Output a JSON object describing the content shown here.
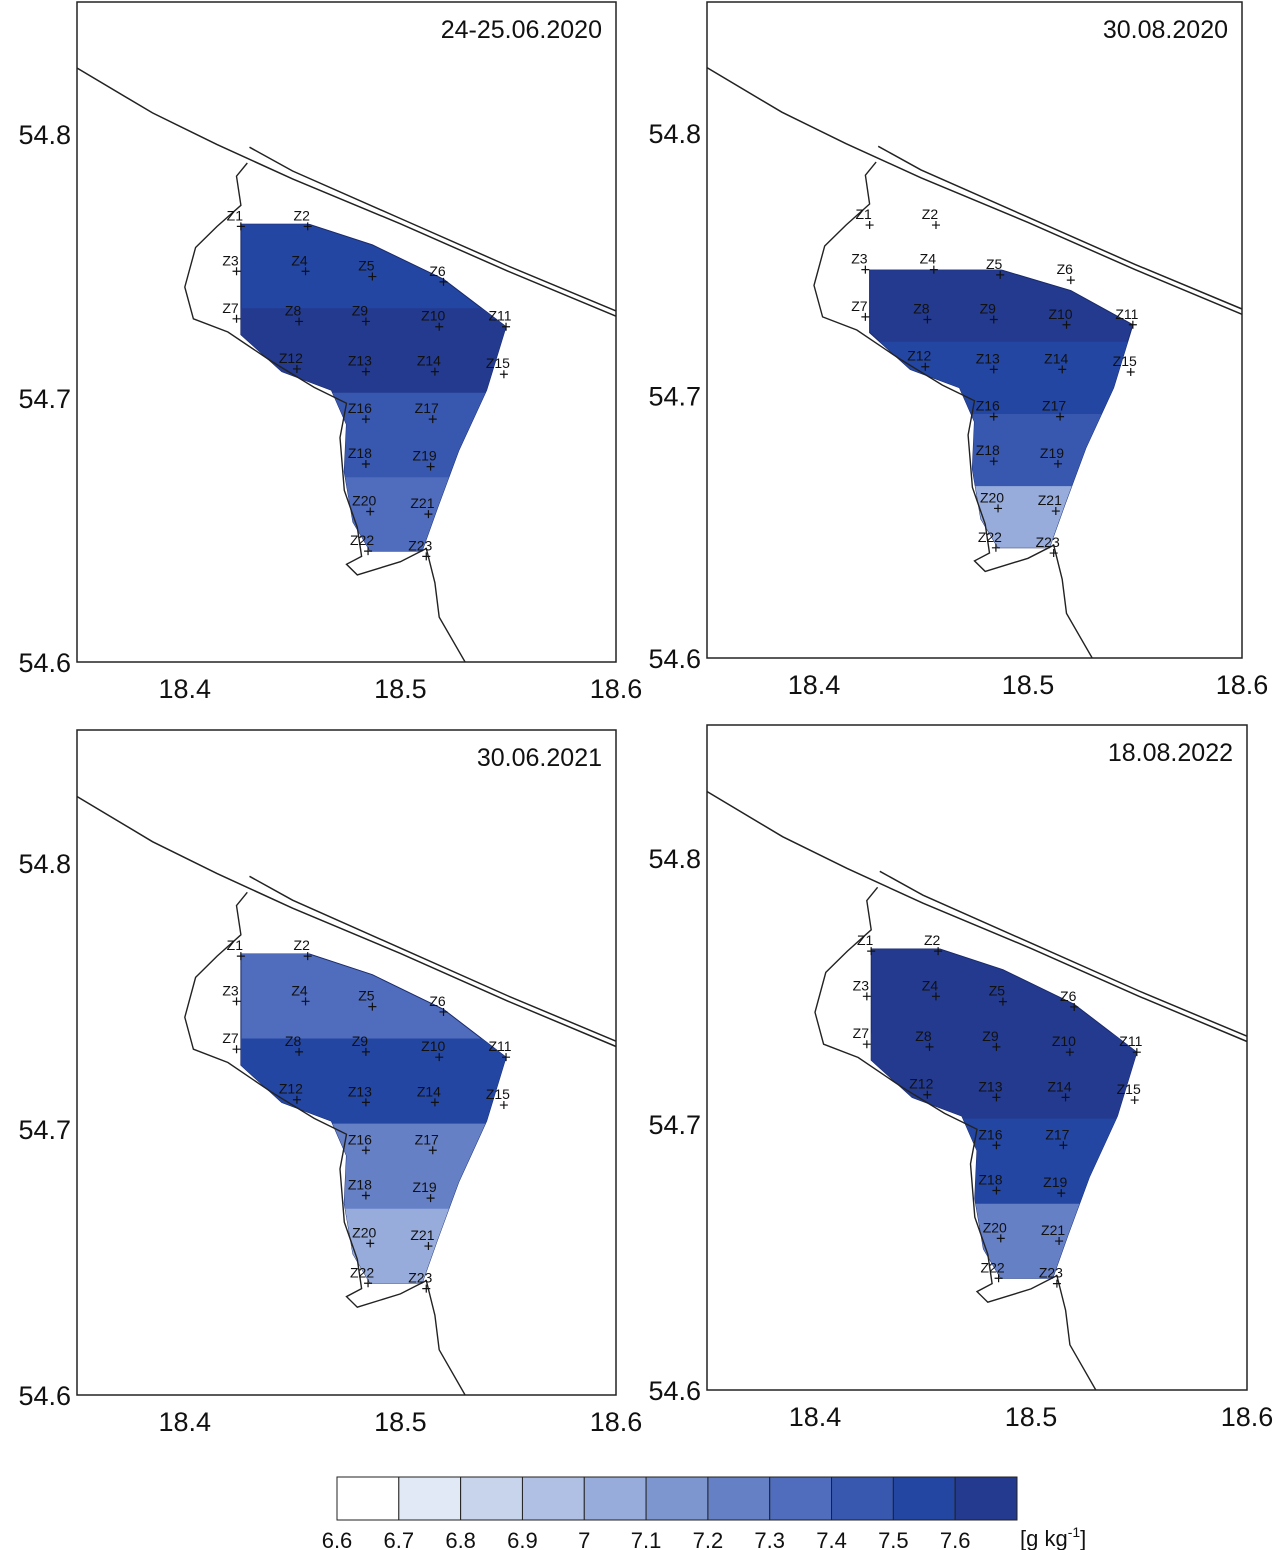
{
  "panels": [
    {
      "title": "24-25.06.2020",
      "fill": [
        7.5,
        7.6,
        7.4,
        7.3
      ],
      "hidden": []
    },
    {
      "title": "30.08.2020",
      "fill": [
        7.6,
        7.5,
        7.4,
        7.0
      ],
      "hidden": [
        "Z1",
        "Z2"
      ]
    },
    {
      "title": "30.06.2021",
      "fill": [
        7.3,
        7.5,
        7.2,
        7.0
      ],
      "hidden": []
    },
    {
      "title": "18.08.2022",
      "fill": [
        7.6,
        7.6,
        7.5,
        7.2
      ],
      "hidden": []
    }
  ],
  "axes": {
    "x_ticks": [
      "18.4",
      "18.5",
      "18.6"
    ],
    "y_ticks": [
      "54.8",
      "54.7",
      "54.6"
    ],
    "x_range": [
      18.35,
      18.6
    ],
    "y_range": [
      54.6,
      54.85
    ]
  },
  "stations": [
    {
      "id": "Z1",
      "lon": 18.426,
      "lat": 54.765
    },
    {
      "id": "Z2",
      "lon": 18.457,
      "lat": 54.765
    },
    {
      "id": "Z3",
      "lon": 18.424,
      "lat": 54.748
    },
    {
      "id": "Z4",
      "lon": 18.456,
      "lat": 54.748
    },
    {
      "id": "Z5",
      "lon": 18.487,
      "lat": 54.746
    },
    {
      "id": "Z6",
      "lon": 18.52,
      "lat": 54.744
    },
    {
      "id": "Z7",
      "lon": 18.424,
      "lat": 54.73
    },
    {
      "id": "Z8",
      "lon": 18.453,
      "lat": 54.729
    },
    {
      "id": "Z9",
      "lon": 18.484,
      "lat": 54.729
    },
    {
      "id": "Z10",
      "lon": 18.518,
      "lat": 54.727
    },
    {
      "id": "Z11",
      "lon": 18.549,
      "lat": 54.727
    },
    {
      "id": "Z12",
      "lon": 18.452,
      "lat": 54.711
    },
    {
      "id": "Z13",
      "lon": 18.484,
      "lat": 54.71
    },
    {
      "id": "Z14",
      "lon": 18.516,
      "lat": 54.71
    },
    {
      "id": "Z15",
      "lon": 18.548,
      "lat": 54.709
    },
    {
      "id": "Z16",
      "lon": 18.484,
      "lat": 54.692
    },
    {
      "id": "Z17",
      "lon": 18.515,
      "lat": 54.692
    },
    {
      "id": "Z18",
      "lon": 18.484,
      "lat": 54.675
    },
    {
      "id": "Z19",
      "lon": 18.514,
      "lat": 54.674
    },
    {
      "id": "Z20",
      "lon": 18.486,
      "lat": 54.657
    },
    {
      "id": "Z21",
      "lon": 18.513,
      "lat": 54.656
    },
    {
      "id": "Z22",
      "lon": 18.485,
      "lat": 54.642
    },
    {
      "id": "Z23",
      "lon": 18.512,
      "lat": 54.64
    }
  ],
  "legend": {
    "breaks": [
      "6.6",
      "6.7",
      "6.8",
      "6.9",
      "7",
      "7.1",
      "7.2",
      "7.3",
      "7.4",
      "7.5",
      "7.6"
    ],
    "colors": [
      "#ffffff",
      "#e2e9f6",
      "#c8d4ec",
      "#b0c0e4",
      "#97acdb",
      "#7e96d0",
      "#6680c6",
      "#4f6cbd",
      "#3858b0",
      "#2446a3",
      "#233a8f"
    ],
    "unit": "[g kg",
    "unit_sup": "-1",
    "unit_close": "]"
  },
  "colors": {
    "frame": "#222222",
    "coast": "#222222"
  }
}
